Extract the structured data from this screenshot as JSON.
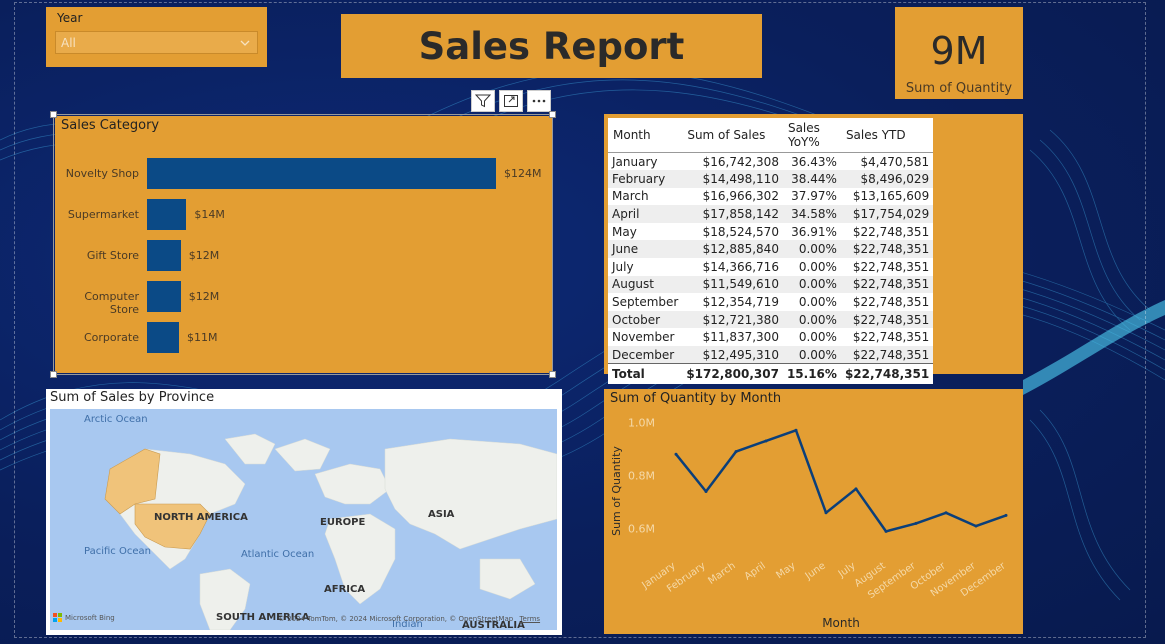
{
  "slicer": {
    "label": "Year",
    "value": "All"
  },
  "header": {
    "title": "Sales Report"
  },
  "kpi": {
    "value": "9M",
    "label": "Sum of Quantity"
  },
  "toolbar": {
    "icons": [
      "filter-icon",
      "focus-mode-icon",
      "more-options-icon"
    ]
  },
  "colors": {
    "background": "#0a1f5c",
    "card": "#e39e33",
    "bar": "#0b4a86",
    "line": "#0b3f7a"
  },
  "sales_category": {
    "title": "Sales Category",
    "bars": [
      {
        "label": "Novelty Shop",
        "value": 124,
        "display": "$124M"
      },
      {
        "label": "Supermarket",
        "value": 14,
        "display": "$14M"
      },
      {
        "label": "Gift Store",
        "value": 12,
        "display": "$12M"
      },
      {
        "label": "Computer Store",
        "value": 12,
        "display": "$12M"
      },
      {
        "label": "Corporate",
        "value": 11,
        "display": "$11M"
      }
    ]
  },
  "table": {
    "headers": [
      "Month",
      "Sum of Sales",
      "Sales YoY%",
      "Sales YTD"
    ],
    "rows": [
      [
        "January",
        "$16,742,308",
        "36.43%",
        "$4,470,581"
      ],
      [
        "February",
        "$14,498,110",
        "38.44%",
        "$8,496,029"
      ],
      [
        "March",
        "$16,966,302",
        "37.97%",
        "$13,165,609"
      ],
      [
        "April",
        "$17,858,142",
        "34.58%",
        "$17,754,029"
      ],
      [
        "May",
        "$18,524,570",
        "36.91%",
        "$22,748,351"
      ],
      [
        "June",
        "$12,885,840",
        "0.00%",
        "$22,748,351"
      ],
      [
        "July",
        "$14,366,716",
        "0.00%",
        "$22,748,351"
      ],
      [
        "August",
        "$11,549,610",
        "0.00%",
        "$22,748,351"
      ],
      [
        "September",
        "$12,354,719",
        "0.00%",
        "$22,748,351"
      ],
      [
        "October",
        "$12,721,380",
        "0.00%",
        "$22,748,351"
      ],
      [
        "November",
        "$11,837,300",
        "0.00%",
        "$22,748,351"
      ],
      [
        "December",
        "$12,495,310",
        "0.00%",
        "$22,748,351"
      ]
    ],
    "total": [
      "Total",
      "$172,800,307",
      "15.16%",
      "$22,748,351"
    ]
  },
  "map": {
    "title": "Sum of Sales by Province",
    "continents": [
      "NORTH AMERICA",
      "EUROPE",
      "ASIA",
      "AFRICA",
      "SOUTH AMERICA",
      "AUSTRALIA"
    ],
    "oceans": [
      "Arctic Ocean",
      "Pacific Ocean",
      "Atlantic Ocean",
      "Indian"
    ],
    "brand": "Microsoft Bing",
    "attribution": "© 2024 TomTom, © 2024 Microsoft Corporation, © OpenStreetMap",
    "terms": "Terms"
  },
  "chart_data": {
    "type": "line",
    "title": "Sum of Quantity by Month",
    "xlabel": "Month",
    "ylabel": "Sum of Quantity",
    "categories": [
      "January",
      "February",
      "March",
      "April",
      "May",
      "June",
      "July",
      "August",
      "September",
      "October",
      "November",
      "December"
    ],
    "values": [
      0.88,
      0.74,
      0.89,
      0.93,
      0.97,
      0.66,
      0.75,
      0.59,
      0.62,
      0.66,
      0.61,
      0.65
    ],
    "y_ticks": [
      "1.0M",
      "0.8M",
      "0.6M"
    ],
    "y_tick_values": [
      1.0,
      0.8,
      0.6
    ],
    "ylim": [
      0.52,
      1.02
    ],
    "grid": false
  }
}
